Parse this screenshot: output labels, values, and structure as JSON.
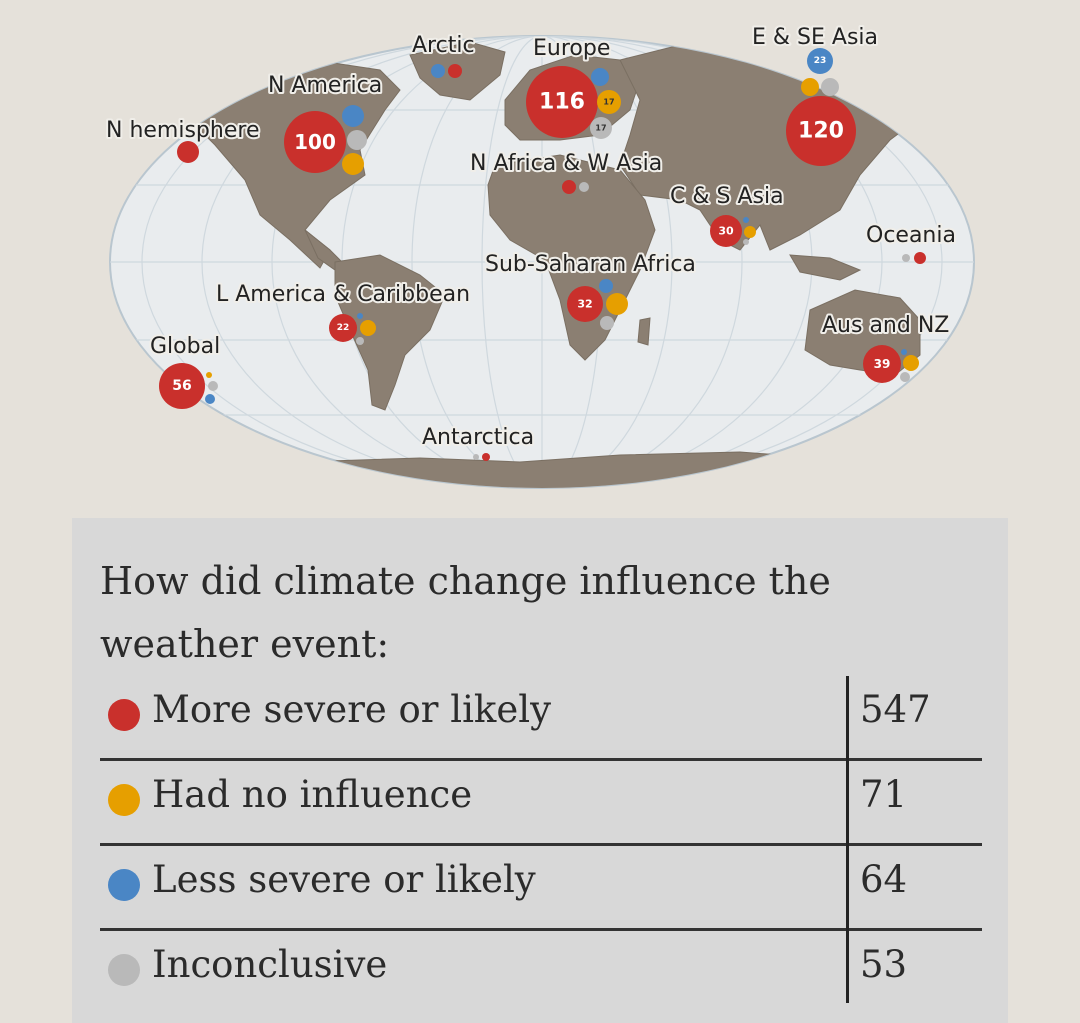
{
  "colors": {
    "more": "#c9302c",
    "none": "#e69f00",
    "less": "#4a86c5",
    "inconclusive": "#b9b9b9",
    "ocean": "#e9ecee",
    "land": "#8b7f72"
  },
  "map": {
    "regions": [
      {
        "key": "arctic",
        "label": "Arctic"
      },
      {
        "key": "europe",
        "label": "Europe",
        "more": "116",
        "none": "17",
        "inconclusive": "17"
      },
      {
        "key": "e_se_asia",
        "label": "E & SE Asia",
        "more": "120",
        "less": "23"
      },
      {
        "key": "n_america",
        "label": "N America",
        "more": "100"
      },
      {
        "key": "n_hemisphere",
        "label": "N hemisphere"
      },
      {
        "key": "n_africa_w_asia",
        "label": "N Africa & W Asia"
      },
      {
        "key": "c_s_asia",
        "label": "C & S Asia",
        "more": "30"
      },
      {
        "key": "oceania",
        "label": "Oceania"
      },
      {
        "key": "sub_saharan_africa",
        "label": "Sub-Saharan Africa",
        "more": "32"
      },
      {
        "key": "l_america",
        "label": "L America & Caribbean",
        "more": "22"
      },
      {
        "key": "aus_nz",
        "label": "Aus and NZ",
        "more": "39"
      },
      {
        "key": "global",
        "label": "Global",
        "more": "56"
      },
      {
        "key": "antarctica",
        "label": "Antarctica"
      }
    ]
  },
  "legend": {
    "title": "How did climate change influence the weather event:",
    "rows": [
      {
        "label": "More severe or likely",
        "count": "547",
        "color": "#c9302c"
      },
      {
        "label": "Had no influence",
        "count": "71",
        "color": "#e69f00"
      },
      {
        "label": "Less severe or likely",
        "count": "64",
        "color": "#4a86c5"
      },
      {
        "label": "Inconclusive",
        "count": "53",
        "color": "#b9b9b9"
      }
    ]
  }
}
